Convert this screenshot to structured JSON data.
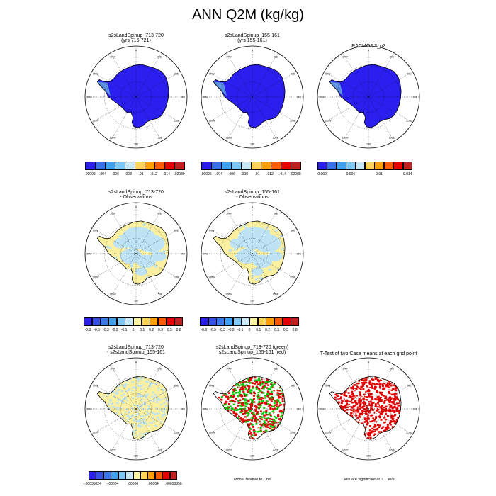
{
  "title": "ANN Q2M (kg/kg)",
  "panels": [
    {
      "id": "p1",
      "title1": "s2sLandSpinup_713-720",
      "title2": "(yrs 715-721)",
      "fill": "mean"
    },
    {
      "id": "p2",
      "title1": "s2sLandSpinup_155-161",
      "title2": "(yrs 155-161)",
      "fill": "mean"
    },
    {
      "id": "p3",
      "title1": "RACMO2.3_p2",
      "title2": "",
      "fill": "mean"
    },
    {
      "id": "p4",
      "title1": "s2sLandSpinup_713-720",
      "title2": "- Observations",
      "fill": "diffobs"
    },
    {
      "id": "p5",
      "title1": "s2sLandSpinup_155-161",
      "title2": "- Observations",
      "fill": "diffobs"
    },
    {
      "id": "p6",
      "title1": "s2sLandSpinup_713-720",
      "title2": "- s2sLandSpinup_155-161",
      "fill": "diffcase"
    },
    {
      "id": "p7",
      "title1": "s2sLandSpinup_713-720 (green)",
      "title2": "s2sLandSpinup_155-161 (red)",
      "fill": "greenred"
    },
    {
      "id": "p8",
      "title1": "T-Test of two Case means at each grid point",
      "title2": "",
      "fill": "ttest"
    }
  ],
  "map_labels": {
    "lon": [
      "0",
      "30E",
      "60E",
      "90E",
      "120E",
      "150E",
      "180",
      "150W",
      "120W",
      "90W",
      "60W",
      "30W"
    ]
  },
  "colorbars": {
    "mean": {
      "colors": [
        "#2b1ff0",
        "#3a6ee8",
        "#3fa0f0",
        "#7fc8f6",
        "#c8e8f8",
        "#ffd35a",
        "#ff9f00",
        "#ff5a00",
        "#e60000",
        "#c02020"
      ],
      "labels": [
        ".00005",
        ".004",
        ".006",
        ".008",
        ".01",
        ".012",
        ".014",
        ".02089"
      ]
    },
    "mean2": {
      "labels": [
        ".00005",
        ".004",
        ".006",
        ".008",
        ".01",
        ".012",
        ".014",
        ".02088"
      ]
    },
    "racmo": {
      "colors": [
        "#2b1ff0",
        "#3a6ee8",
        "#3fa0f0",
        "#7fc8f6",
        "#c8e8f8",
        "#ffd35a",
        "#ff9f00",
        "#ff5a00",
        "#e60000",
        "#c02020"
      ],
      "labels": [
        "0.002",
        "0.006",
        "0.01",
        "0.014"
      ]
    },
    "diff": {
      "colors": [
        "#2b1ff0",
        "#3550e8",
        "#3a7ae8",
        "#3fa0f0",
        "#7fc8f6",
        "#c8e8f8",
        "#fff5a0",
        "#ffd35a",
        "#ff9f00",
        "#ff5a00",
        "#e60000",
        "#c02020"
      ],
      "labels": [
        "-0.8",
        "-0.5",
        "-0.3",
        "-0.2",
        "-0.1",
        "0",
        "0.1",
        "0.2",
        "0.3",
        "0.5",
        "0.8"
      ]
    },
    "diffcase": {
      "colors": [
        "#2b1ff0",
        "#3550e8",
        "#3a7ae8",
        "#3fa0f0",
        "#7fc8f6",
        "#c8e8f8",
        "#fff5a0",
        "#ffd35a",
        "#ff9f00",
        "#ff5a00",
        "#e60000",
        "#c02020"
      ],
      "labels": [
        "-.00035824",
        "-.00004",
        ".00000",
        ".00004",
        ".00033356"
      ]
    }
  },
  "notes": {
    "model_rel": "Model relative to Obs",
    "signif": "Cells are significant at 0.1 level"
  },
  "colors": {
    "ice_mean": "#2b1ff0",
    "diff_blue": "#bde3f5",
    "diff_yellow": "#fbefa0",
    "green": "#00cc00",
    "red": "#e60000",
    "peninsula": "#5b8fe0"
  }
}
